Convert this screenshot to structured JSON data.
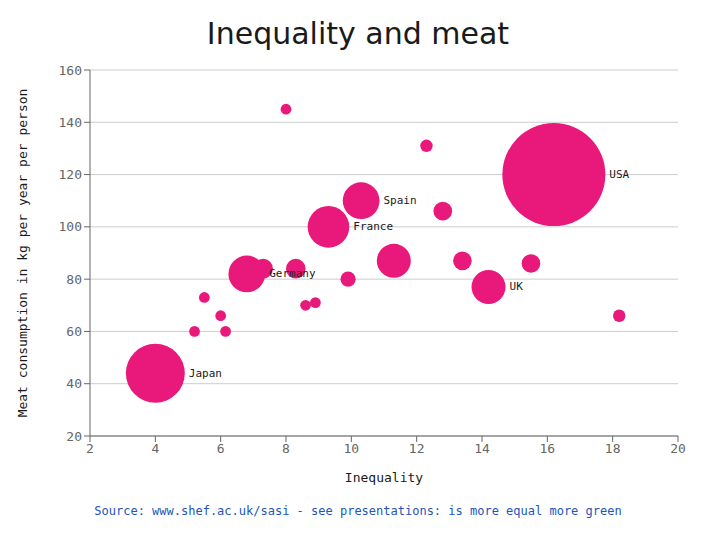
{
  "chart_data": {
    "type": "scatter",
    "title": "Inequality and meat",
    "xlabel": "Inequality",
    "ylabel": "Meat consumption in kg per year per person",
    "color": "#e8197a",
    "x": [
      4.0,
      5.2,
      5.5,
      6.0,
      6.15,
      6.8,
      7.3,
      8.0,
      8.3,
      8.6,
      8.9,
      9.3,
      9.9,
      10.3,
      11.3,
      12.3,
      12.8,
      13.4,
      14.2,
      15.5,
      16.2,
      18.2
    ],
    "values": [
      44,
      60,
      73,
      66,
      60,
      82,
      84,
      145,
      84,
      70,
      71,
      100,
      80,
      110,
      87,
      131,
      106,
      87,
      77,
      86,
      120,
      66
    ],
    "sizes": [
      1800,
      60,
      60,
      60,
      60,
      700,
      200,
      60,
      200,
      60,
      60,
      900,
      120,
      700,
      600,
      80,
      180,
      180,
      600,
      180,
      5500,
      80
    ],
    "labels": [
      "Japan",
      null,
      null,
      null,
      null,
      "Germany",
      null,
      null,
      null,
      null,
      null,
      "France",
      null,
      "Spain",
      null,
      null,
      null,
      null,
      "UK",
      null,
      "USA",
      null
    ],
    "xlim": [
      2,
      20
    ],
    "ylim": [
      20,
      160
    ],
    "xticks": [
      2,
      4,
      6,
      8,
      10,
      12,
      14,
      16,
      18,
      20
    ],
    "yticks": [
      20,
      40,
      60,
      80,
      100,
      120,
      140,
      160
    ],
    "grid": "y",
    "source": "Source: www.shef.ac.uk/sasi - see presentations: is more equal more green"
  }
}
